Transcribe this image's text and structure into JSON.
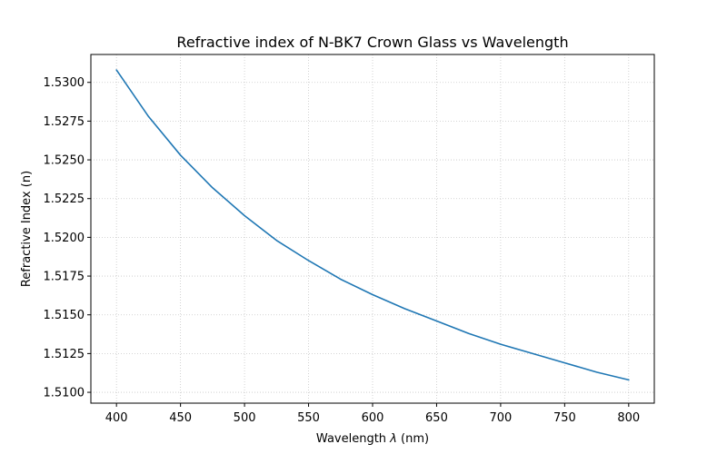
{
  "chart_data": {
    "type": "line",
    "title": "Refractive index of N-BK7 Crown Glass vs Wavelength",
    "xlabel_prefix": "Wavelength ",
    "xlabel_symbol": "λ",
    "xlabel_suffix": " (nm)",
    "ylabel": "Refractive Index (n)",
    "xlim": [
      380,
      820
    ],
    "ylim": [
      1.5093,
      1.5318
    ],
    "grid": true,
    "x_ticks": [
      400,
      450,
      500,
      550,
      600,
      650,
      700,
      750,
      800
    ],
    "x_tick_labels": [
      "400",
      "450",
      "500",
      "550",
      "600",
      "650",
      "700",
      "750",
      "800"
    ],
    "y_ticks": [
      1.51,
      1.5125,
      1.515,
      1.5175,
      1.52,
      1.5225,
      1.525,
      1.5275,
      1.53
    ],
    "y_tick_labels": [
      "1.5100",
      "1.5125",
      "1.5150",
      "1.5175",
      "1.5200",
      "1.5225",
      "1.5250",
      "1.5275",
      "1.5300"
    ],
    "series": [
      {
        "name": "N-BK7",
        "color": "#1f77b4",
        "x": [
          400,
          425,
          450,
          475,
          500,
          525,
          550,
          575,
          600,
          625,
          650,
          675,
          700,
          725,
          750,
          775,
          800
        ],
        "y": [
          1.5308,
          1.5278,
          1.5253,
          1.5232,
          1.5214,
          1.5198,
          1.5185,
          1.5173,
          1.5163,
          1.5154,
          1.5146,
          1.5138,
          1.5131,
          1.5125,
          1.5119,
          1.5113,
          1.5108
        ]
      }
    ]
  }
}
